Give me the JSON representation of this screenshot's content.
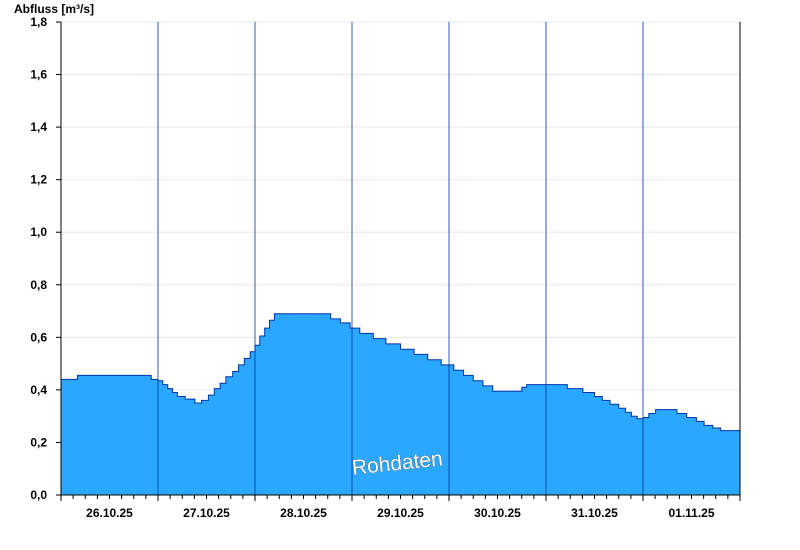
{
  "chart_data": {
    "type": "area",
    "ylabel": "Abfluss [m³/s]",
    "ylim": [
      0,
      1.8
    ],
    "yticks": [
      0.0,
      0.2,
      0.4,
      0.6,
      0.8,
      1.0,
      1.2,
      1.4,
      1.6,
      1.8
    ],
    "ytick_labels": [
      "0,0",
      "0,2",
      "0,4",
      "0,6",
      "0,8",
      "1,0",
      "1,2",
      "1,4",
      "1,6",
      "1,8"
    ],
    "xlim": [
      0,
      7
    ],
    "x_unit": "days since 26.10.25 00:00",
    "day_labels": [
      "26.10.25",
      "27.10.25",
      "28.10.25",
      "29.10.25",
      "30.10.25",
      "31.10.25",
      "01.11.25"
    ],
    "grid": true,
    "watermark": "Rohdaten",
    "colors": {
      "fill": "#2aa8ff",
      "line": "#0033aa",
      "grid": "#e8e8e8",
      "axis": "#000000"
    },
    "series": [
      {
        "values": [
          [
            0.0,
            0.44
          ],
          [
            0.15,
            0.44
          ],
          [
            0.17,
            0.455
          ],
          [
            0.9,
            0.455
          ],
          [
            0.93,
            0.44
          ],
          [
            1.0,
            0.435
          ],
          [
            1.05,
            0.42
          ],
          [
            1.1,
            0.405
          ],
          [
            1.15,
            0.39
          ],
          [
            1.2,
            0.375
          ],
          [
            1.28,
            0.365
          ],
          [
            1.38,
            0.35
          ],
          [
            1.45,
            0.36
          ],
          [
            1.52,
            0.38
          ],
          [
            1.58,
            0.405
          ],
          [
            1.64,
            0.425
          ],
          [
            1.7,
            0.45
          ],
          [
            1.77,
            0.47
          ],
          [
            1.83,
            0.495
          ],
          [
            1.89,
            0.52
          ],
          [
            1.95,
            0.545
          ],
          [
            2.0,
            0.57
          ],
          [
            2.05,
            0.605
          ],
          [
            2.1,
            0.635
          ],
          [
            2.15,
            0.665
          ],
          [
            2.2,
            0.69
          ],
          [
            2.7,
            0.69
          ],
          [
            2.78,
            0.67
          ],
          [
            2.88,
            0.655
          ],
          [
            2.98,
            0.635
          ],
          [
            3.08,
            0.615
          ],
          [
            3.22,
            0.595
          ],
          [
            3.35,
            0.575
          ],
          [
            3.5,
            0.555
          ],
          [
            3.64,
            0.535
          ],
          [
            3.78,
            0.515
          ],
          [
            3.92,
            0.495
          ],
          [
            4.05,
            0.475
          ],
          [
            4.15,
            0.455
          ],
          [
            4.25,
            0.435
          ],
          [
            4.35,
            0.415
          ],
          [
            4.45,
            0.395
          ],
          [
            4.65,
            0.395
          ],
          [
            4.75,
            0.41
          ],
          [
            4.8,
            0.42
          ],
          [
            5.08,
            0.42
          ],
          [
            5.22,
            0.405
          ],
          [
            5.38,
            0.39
          ],
          [
            5.5,
            0.375
          ],
          [
            5.58,
            0.36
          ],
          [
            5.66,
            0.345
          ],
          [
            5.75,
            0.33
          ],
          [
            5.82,
            0.315
          ],
          [
            5.88,
            0.3
          ],
          [
            5.94,
            0.29
          ],
          [
            6.0,
            0.295
          ],
          [
            6.06,
            0.31
          ],
          [
            6.13,
            0.325
          ],
          [
            6.28,
            0.325
          ],
          [
            6.35,
            0.31
          ],
          [
            6.45,
            0.295
          ],
          [
            6.55,
            0.28
          ],
          [
            6.63,
            0.265
          ],
          [
            6.72,
            0.255
          ],
          [
            6.8,
            0.245
          ],
          [
            6.98,
            0.245
          ],
          [
            7.0,
            0.255
          ]
        ]
      }
    ]
  }
}
